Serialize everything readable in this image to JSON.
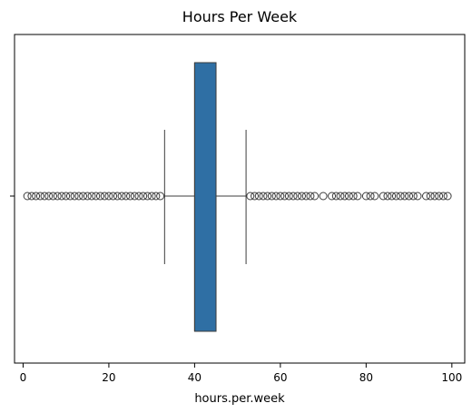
{
  "chart_data": {
    "type": "boxplot",
    "orientation": "horizontal",
    "title": "Hours Per Week",
    "xlabel": "hours.per.week",
    "ylabel": "",
    "xlim": [
      -2,
      103
    ],
    "x_ticks": [
      0,
      20,
      40,
      60,
      80,
      100
    ],
    "grid": false,
    "color": "#2f6fa4",
    "box": {
      "whisker_low": 33,
      "q1": 40,
      "median": 40,
      "q3": 45,
      "whisker_high": 52
    },
    "outliers": [
      1,
      2,
      3,
      4,
      5,
      6,
      7,
      8,
      9,
      10,
      11,
      12,
      13,
      14,
      15,
      16,
      17,
      18,
      19,
      20,
      21,
      22,
      23,
      24,
      25,
      26,
      27,
      28,
      29,
      30,
      31,
      32,
      53,
      54,
      55,
      56,
      57,
      58,
      59,
      60,
      61,
      62,
      63,
      64,
      65,
      66,
      67,
      68,
      70,
      72,
      73,
      74,
      75,
      76,
      77,
      78,
      80,
      81,
      82,
      84,
      85,
      86,
      87,
      88,
      89,
      90,
      91,
      92,
      94,
      95,
      96,
      97,
      98,
      99
    ]
  }
}
